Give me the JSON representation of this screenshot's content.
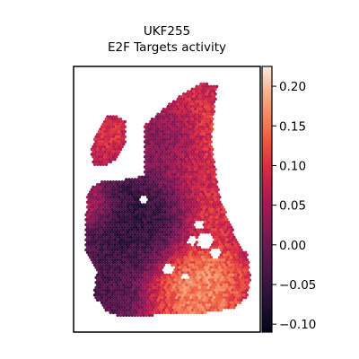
{
  "chart_data": {
    "type": "heatmap",
    "title_lines": [
      "UKF255",
      "E2F Targets activity"
    ],
    "xlabel": "",
    "ylabel": "",
    "colorbar": {
      "colormap": "rocket",
      "range": [
        -0.11,
        0.225
      ],
      "ticks": [
        -0.1,
        -0.05,
        0.0,
        0.05,
        0.1,
        0.15,
        0.2
      ],
      "tick_labels": [
        "−0.10",
        "−0.05",
        "0.00",
        "0.05",
        "0.10",
        "0.15",
        "0.20"
      ]
    },
    "spatial_hotspots": [
      {
        "region": "upper-right lobe",
        "value": 0.15
      },
      {
        "region": "upper-left islet",
        "value": 0.12
      },
      {
        "region": "right-center",
        "value": 0.12
      },
      {
        "region": "lower-right",
        "value": 0.2
      },
      {
        "region": "left edge",
        "value": 0.1
      },
      {
        "region": "center-left",
        "value": -0.08
      },
      {
        "region": "upper-center",
        "value": -0.06
      },
      {
        "region": "bottom-left",
        "value": -0.04
      }
    ],
    "baseline_value": 0.01,
    "grid": false,
    "axes_ticks": false
  }
}
